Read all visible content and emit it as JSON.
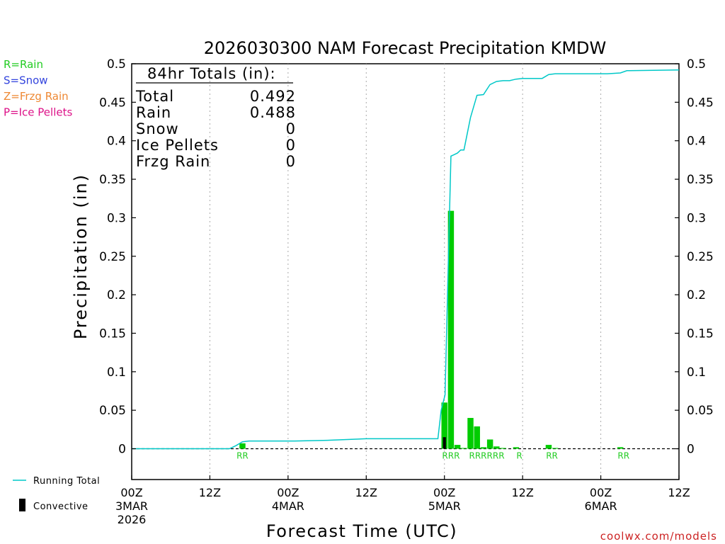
{
  "chart_data": {
    "type": "bar",
    "title": "2026030300 NAM Forecast Precipitation KMDW",
    "xlabel": "Forecast Time (UTC)",
    "ylabel": "Precipitation (in)",
    "ylim": [
      -0.04,
      0.5
    ],
    "xlim_hours": [
      0,
      84
    ],
    "yticks": [
      "0",
      "0.05",
      "0.1",
      "0.15",
      "0.2",
      "0.25",
      "0.3",
      "0.35",
      "0.4",
      "0.45",
      "0.5"
    ],
    "ytick_values": [
      0,
      0.05,
      0.1,
      0.15,
      0.2,
      0.25,
      0.3,
      0.35,
      0.4,
      0.45,
      0.5
    ],
    "xticks": [
      {
        "hour": 0,
        "label": "00Z",
        "date": "3MAR",
        "year": "2026"
      },
      {
        "hour": 12,
        "label": "12Z",
        "date": "",
        "year": ""
      },
      {
        "hour": 24,
        "label": "00Z",
        "date": "4MAR",
        "year": ""
      },
      {
        "hour": 36,
        "label": "12Z",
        "date": "",
        "year": ""
      },
      {
        "hour": 48,
        "label": "00Z",
        "date": "5MAR",
        "year": ""
      },
      {
        "hour": 60,
        "label": "12Z",
        "date": "",
        "year": ""
      },
      {
        "hour": 72,
        "label": "00Z",
        "date": "6MAR",
        "year": ""
      },
      {
        "hour": 84,
        "label": "12Z",
        "date": "",
        "year": ""
      }
    ],
    "precip_bars": [
      {
        "hour": 17,
        "value": 0.007
      },
      {
        "hour": 48,
        "value": 0.06
      },
      {
        "hour": 49,
        "value": 0.309
      },
      {
        "hour": 50,
        "value": 0.005
      },
      {
        "hour": 51,
        "value": 0.001
      },
      {
        "hour": 52,
        "value": 0.04
      },
      {
        "hour": 53,
        "value": 0.029
      },
      {
        "hour": 54,
        "value": 0.002
      },
      {
        "hour": 55,
        "value": 0.012
      },
      {
        "hour": 56,
        "value": 0.003
      },
      {
        "hour": 57,
        "value": 0.001
      },
      {
        "hour": 59,
        "value": 0.002
      },
      {
        "hour": 64,
        "value": 0.005
      },
      {
        "hour": 65,
        "value": 0.001
      },
      {
        "hour": 75,
        "value": 0.002
      }
    ],
    "convective_bars": [
      {
        "hour": 48,
        "value": 0.015
      }
    ],
    "running_total": {
      "hours": [
        0,
        15,
        16,
        17,
        18,
        25,
        30,
        36,
        47,
        47.5,
        48.1,
        49,
        49.5,
        50,
        50.5,
        51,
        52,
        53,
        54,
        55,
        56,
        57,
        58,
        59,
        60,
        63,
        64,
        65,
        66,
        69,
        70,
        71,
        72,
        73,
        75,
        76,
        84
      ],
      "values": [
        0,
        0,
        0.004,
        0.009,
        0.01,
        0.01,
        0.011,
        0.013,
        0.013,
        0.05,
        0.07,
        0.38,
        0.382,
        0.384,
        0.388,
        0.388,
        0.43,
        0.459,
        0.46,
        0.473,
        0.477,
        0.478,
        0.478,
        0.48,
        0.481,
        0.481,
        0.486,
        0.487,
        0.487,
        0.487,
        0.487,
        0.487,
        0.487,
        0.487,
        0.488,
        0.491,
        0.492
      ]
    },
    "ptype_labels": [
      {
        "hour": 17,
        "text": "RR"
      },
      {
        "hour": 49,
        "text": "RRR"
      },
      {
        "hour": 54.5,
        "text": "RRRRRR"
      },
      {
        "hour": 59.5,
        "text": "R"
      },
      {
        "hour": 64.5,
        "text": "RR"
      },
      {
        "hour": 75.5,
        "text": "RR"
      }
    ],
    "totals_box": {
      "heading": "84hr Totals (in):",
      "rows": [
        {
          "label": "Total",
          "value": "0.492"
        },
        {
          "label": "Rain",
          "value": "0.488"
        },
        {
          "label": "Snow",
          "value": "0"
        },
        {
          "label": "Ice Pellets",
          "value": "0"
        },
        {
          "label": "Frzg Rain",
          "value": "0"
        }
      ]
    },
    "ptype_legend": [
      {
        "text": "R=Rain",
        "color": "#22cc22"
      },
      {
        "text": "S=Snow",
        "color": "#3344dd"
      },
      {
        "text": "Z=Frzg Rain",
        "color": "#ee8833"
      },
      {
        "text": "P=Ice Pellets",
        "color": "#dd1188"
      }
    ],
    "series_legend": [
      {
        "name": "Running Total",
        "color": "#00c8c8",
        "kind": "line"
      },
      {
        "name": "Convective",
        "color": "#000000",
        "kind": "bar"
      }
    ],
    "credit": "coolwx.com/models",
    "colors": {
      "bar": "#00cc00",
      "convective": "#000000",
      "running_total": "#00c8c8",
      "ptype_label": "#22cc22",
      "credit": "#cc2222",
      "grid": "#aaaaaa"
    }
  }
}
